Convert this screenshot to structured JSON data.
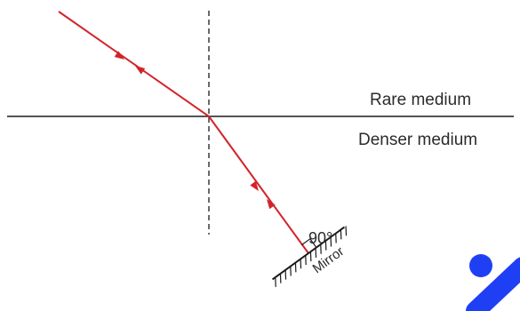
{
  "labels": {
    "rare_medium": "Rare medium",
    "denser_medium": "Denser medium",
    "angle": "90°",
    "mirror": "Mirror"
  },
  "colors": {
    "ray": "#d2232a",
    "line": "#1a1a1a",
    "watermark": "#1f3ff5"
  }
}
